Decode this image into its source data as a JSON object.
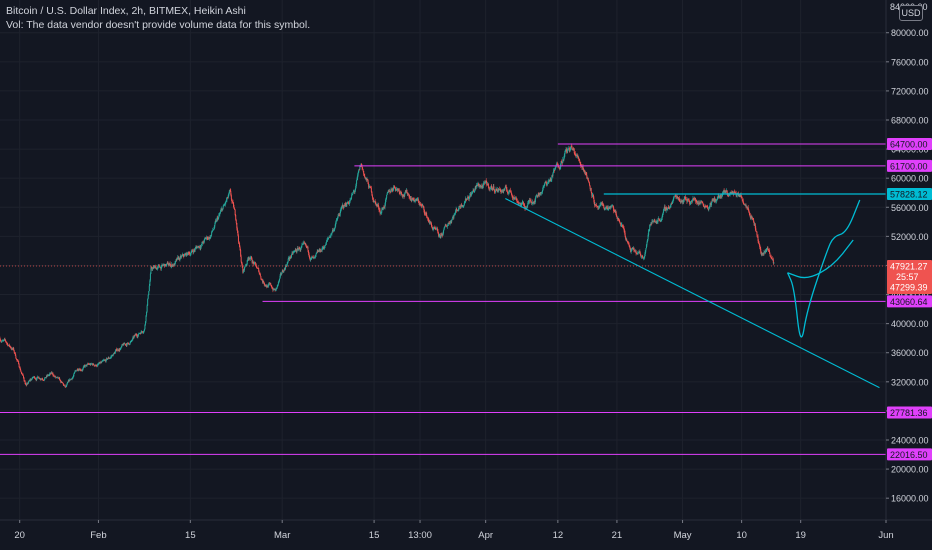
{
  "legend": {
    "line1": "Bitcoin / U.S. Dollar Index, 2h, BITMEX, Heikin Ashi",
    "line2": "Vol: The data vendor doesn't provide volume data for this symbol."
  },
  "currency_badge": "USD",
  "top_axis_cutoff": "84000.00",
  "colors": {
    "background": "#131722",
    "up": "#26a69a",
    "down": "#ef5350",
    "horizontal_levels": "#e040fb",
    "trendline": "#00bcd4",
    "current_price": "#ef5350"
  },
  "chart_data": {
    "type": "candlestick",
    "style": "Heikin Ashi",
    "symbol": "Bitcoin / U.S. Dollar Index",
    "interval": "2h",
    "exchange": "BITMEX",
    "y_axis_side": "right",
    "ylim": [
      13000,
      84500
    ],
    "y_ticks": [
      16000,
      20000,
      24000,
      28000,
      32000,
      36000,
      40000,
      44000,
      48000,
      52000,
      56000,
      60000,
      64000,
      68000,
      72000,
      76000,
      80000
    ],
    "y_tick_labels": [
      "16000.00",
      "20000.00",
      "24000.00",
      "28000.00",
      "32000.00",
      "36000.00",
      "40000.00",
      "44000.00",
      "48000.00",
      "52000.00",
      "56000.00",
      "60000.00",
      "64000.00",
      "68000.00",
      "72000.00",
      "76000.00",
      "80000.00"
    ],
    "x_range": [
      "2021-01-17",
      "2021-06-01"
    ],
    "x_ticks": [
      {
        "label": "20",
        "date": "2021-01-20"
      },
      {
        "label": "Feb",
        "date": "2021-02-01"
      },
      {
        "label": "15",
        "date": "2021-02-15"
      },
      {
        "label": "Mar",
        "date": "2021-03-01"
      },
      {
        "label": "15",
        "date": "2021-03-15"
      },
      {
        "label": "13:00",
        "date": "2021-03-22"
      },
      {
        "label": "Apr",
        "date": "2021-04-01"
      },
      {
        "label": "12",
        "date": "2021-04-12"
      },
      {
        "label": "21",
        "date": "2021-04-21"
      },
      {
        "label": "May",
        "date": "2021-05-01"
      },
      {
        "label": "10",
        "date": "2021-05-10"
      },
      {
        "label": "19",
        "date": "2021-05-19"
      },
      {
        "label": "Jun",
        "date": "2021-06-01"
      }
    ],
    "price_path": [
      [
        "2021-01-17",
        38000
      ],
      [
        "2021-01-19",
        36500
      ],
      [
        "2021-01-21",
        31500
      ],
      [
        "2021-01-22",
        32500
      ],
      [
        "2021-01-25",
        33000
      ],
      [
        "2021-01-27",
        31000
      ],
      [
        "2021-01-29",
        34000
      ],
      [
        "2021-02-02",
        34500
      ],
      [
        "2021-02-04",
        36500
      ],
      [
        "2021-02-06",
        37500
      ],
      [
        "2021-02-08",
        39500
      ],
      [
        "2021-02-09",
        47500
      ],
      [
        "2021-02-12",
        48000
      ],
      [
        "2021-02-14",
        49000
      ],
      [
        "2021-02-16",
        50500
      ],
      [
        "2021-02-18",
        52000
      ],
      [
        "2021-02-21",
        57500
      ],
      [
        "2021-02-22",
        54000
      ],
      [
        "2021-02-23",
        47000
      ],
      [
        "2021-02-24",
        49500
      ],
      [
        "2021-02-26",
        46000
      ],
      [
        "2021-02-28",
        44500
      ],
      [
        "2021-03-02",
        49000
      ],
      [
        "2021-03-04",
        50500
      ],
      [
        "2021-03-06",
        48500
      ],
      [
        "2021-03-08",
        51500
      ],
      [
        "2021-03-10",
        55500
      ],
      [
        "2021-03-12",
        58000
      ],
      [
        "2021-03-13",
        61500
      ],
      [
        "2021-03-15",
        57000
      ],
      [
        "2021-03-16",
        55500
      ],
      [
        "2021-03-18",
        59000
      ],
      [
        "2021-03-20",
        58000
      ],
      [
        "2021-03-22",
        56500
      ],
      [
        "2021-03-24",
        53000
      ],
      [
        "2021-03-25",
        51500
      ],
      [
        "2021-03-27",
        55000
      ],
      [
        "2021-03-29",
        57500
      ],
      [
        "2021-03-31",
        59000
      ],
      [
        "2021-04-03",
        58500
      ],
      [
        "2021-04-05",
        58000
      ],
      [
        "2021-04-07",
        56000
      ],
      [
        "2021-04-09",
        58000
      ],
      [
        "2021-04-11",
        60000
      ],
      [
        "2021-04-13",
        63500
      ],
      [
        "2021-04-14",
        64000
      ],
      [
        "2021-04-16",
        61500
      ],
      [
        "2021-04-17",
        59000
      ],
      [
        "2021-04-18",
        55500
      ],
      [
        "2021-04-20",
        56000
      ],
      [
        "2021-04-22",
        53000
      ],
      [
        "2021-04-23",
        50000
      ],
      [
        "2021-04-25",
        49000
      ],
      [
        "2021-04-26",
        53500
      ],
      [
        "2021-04-28",
        55000
      ],
      [
        "2021-04-30",
        57500
      ],
      [
        "2021-05-03",
        57000
      ],
      [
        "2021-05-05",
        56500
      ],
      [
        "2021-05-07",
        57500
      ],
      [
        "2021-05-09",
        58000
      ],
      [
        "2021-05-11",
        56500
      ],
      [
        "2021-05-12",
        54000
      ],
      [
        "2021-05-13",
        49500
      ],
      [
        "2021-05-14",
        50500
      ],
      [
        "2021-05-15",
        47921.27
      ]
    ],
    "horizontal_levels": [
      {
        "price": 64700,
        "label": "64700.00",
        "from": "2021-04-12"
      },
      {
        "price": 61700,
        "label": "61700.00",
        "from": "2021-03-12"
      },
      {
        "price": 43060.64,
        "label": "43060.64",
        "from": "2021-02-26"
      },
      {
        "price": 27781.36,
        "label": "27781.36",
        "from": "2021-01-17"
      },
      {
        "price": 22016.5,
        "label": "22016.50",
        "from": "2021-01-17"
      }
    ],
    "cyan_level": {
      "price": 57828.12,
      "label": "57828.12",
      "from": "2021-04-19"
    },
    "trendline": {
      "start": [
        "2021-04-04",
        57200
      ],
      "end": [
        "2021-05-31",
        31200
      ]
    },
    "projection_paths": [
      [
        [
          "2021-05-17",
          47000
        ],
        [
          "2021-05-18",
          45000
        ],
        [
          "2021-05-19",
          36500
        ],
        [
          "2021-05-20",
          42000
        ],
        [
          "2021-05-23",
          50000
        ],
        [
          "2021-05-24",
          52000
        ],
        [
          "2021-05-26",
          52500
        ],
        [
          "2021-05-28",
          57000
        ]
      ],
      [
        [
          "2021-05-17",
          47000
        ],
        [
          "2021-05-20",
          46000
        ],
        [
          "2021-05-24",
          48000
        ],
        [
          "2021-05-27",
          51500
        ]
      ]
    ],
    "current_price": {
      "label": "47921.27",
      "value": 47921.27,
      "countdown": "25:57",
      "secondary_label": "47299.39",
      "secondary_value": 47299.39
    }
  }
}
